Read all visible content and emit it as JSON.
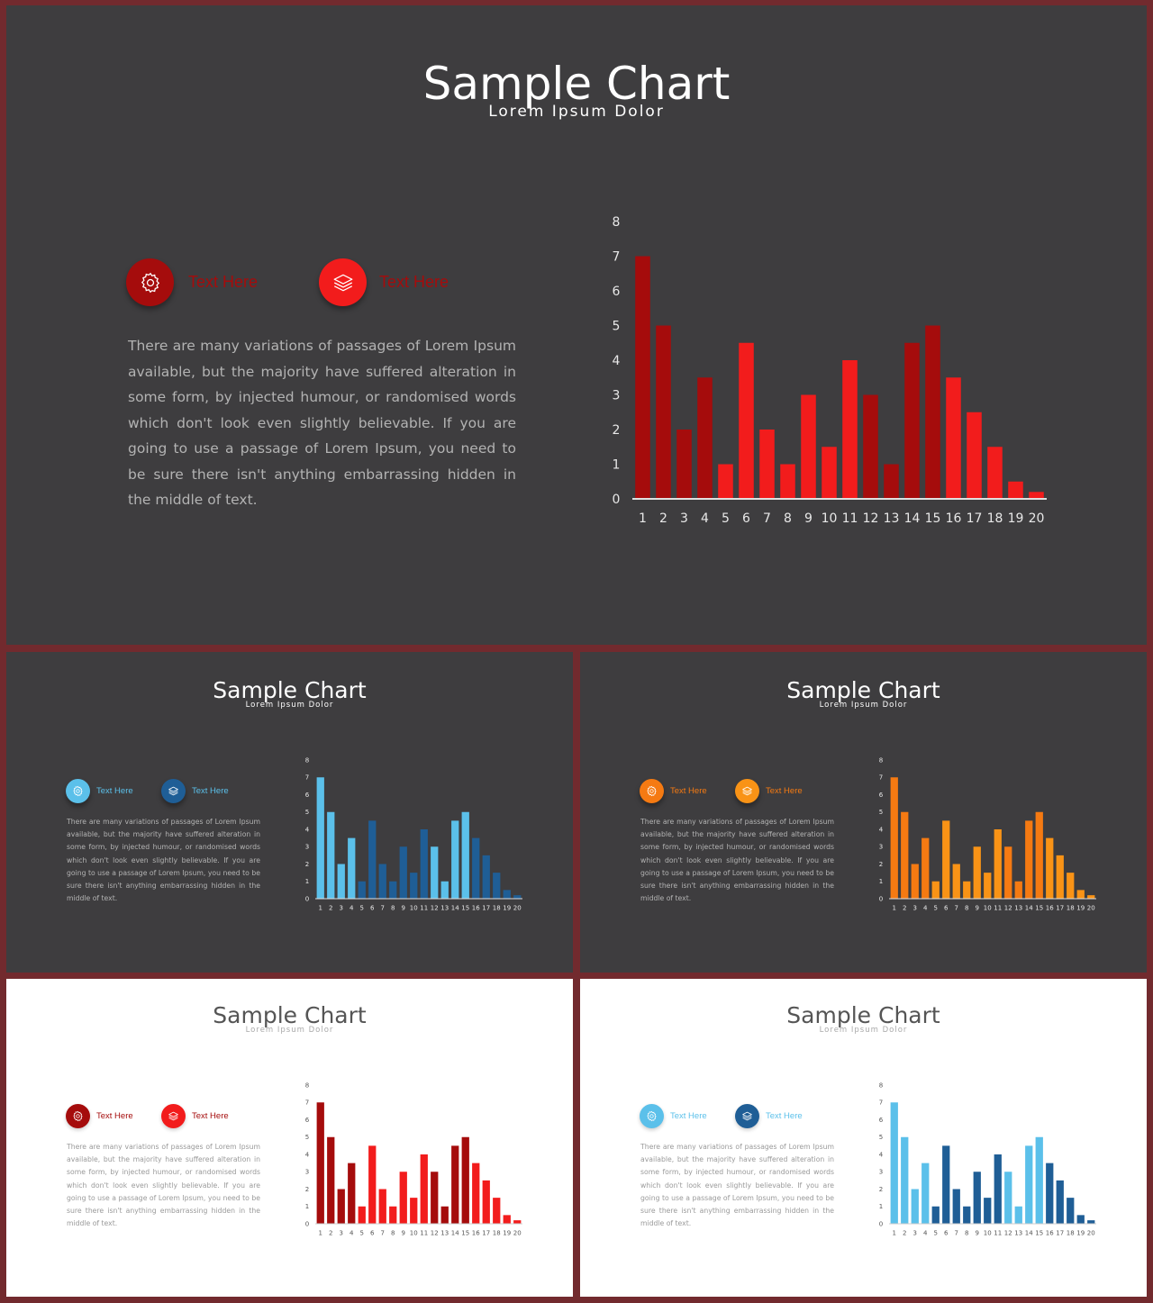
{
  "slides": [
    {
      "title": "Sample Chart",
      "subtitle": "Lorem Ipsum Dolor",
      "feature1": {
        "label": "Text Here",
        "icon": "gear-icon"
      },
      "feature2": {
        "label": "Text Here",
        "icon": "layers-icon"
      },
      "body": "There are many variations of passages of Lorem Ipsum available, but the majority have suffered alteration in some form, by injected humour, or randomised words which don't look even slightly believable. If you are going to use a passage of Lorem Ipsum, you need to be sure there isn't anything embarrassing hidden in the middle of text."
    },
    {
      "title": "Sample Chart",
      "subtitle": "Lorem Ipsum Dolor",
      "feature1": {
        "label": "Text Here",
        "icon": "gear-icon"
      },
      "feature2": {
        "label": "Text Here",
        "icon": "layers-icon"
      },
      "body": "There are many variations of passages of Lorem Ipsum available, but the majority have suffered alteration in some form, by injected humour, or randomised words which don't look even slightly believable. If you are going to use a passage of Lorem Ipsum, you need to be sure there isn't anything embarrassing hidden in the middle of text."
    },
    {
      "title": "Sample Chart",
      "subtitle": "Lorem Ipsum Dolor",
      "feature1": {
        "label": "Text Here",
        "icon": "gear-icon"
      },
      "feature2": {
        "label": "Text Here",
        "icon": "layers-icon"
      },
      "body": "There are many variations of passages of Lorem Ipsum available, but the majority have suffered alteration in some form, by injected humour, or randomised words which don't look even slightly believable. If you are going to use a passage of Lorem Ipsum, you need to be sure there isn't anything embarrassing hidden in the middle of text."
    },
    {
      "title": "Sample Chart",
      "subtitle": "Lorem Ipsum Dolor",
      "feature1": {
        "label": "Text Here",
        "icon": "gear-icon"
      },
      "feature2": {
        "label": "Text Here",
        "icon": "layers-icon"
      },
      "body": "There are many variations of passages of Lorem Ipsum available, but the majority have suffered alteration in some form, by injected humour, or randomised words which don't look even slightly believable. If you are going to use a passage of Lorem Ipsum, you need to be sure there isn't anything embarrassing hidden in the middle of text."
    },
    {
      "title": "Sample Chart",
      "subtitle": "Lorem Ipsum Dolor",
      "feature1": {
        "label": "Text Here",
        "icon": "gear-icon"
      },
      "feature2": {
        "label": "Text Here",
        "icon": "layers-icon"
      },
      "body": "There are many variations of passages of Lorem Ipsum available, but the majority have suffered alteration in some form, by injected humour, or randomised words which don't look even slightly believable. If you are going to use a passage of Lorem Ipsum, you need to be sure there isn't anything embarrassing hidden in the middle of text."
    }
  ],
  "themes": {
    "red": {
      "primary": "#a50c0c",
      "secondary": "#f21c1c",
      "label": "#a50c0c"
    },
    "blue": {
      "primary": "#5bc0ea",
      "secondary": "#1f5e96",
      "label": "#5bc0ea"
    },
    "orange": {
      "primary": "#f57a12",
      "secondary": "#f99316",
      "label": "#f57a12"
    },
    "red_light": {
      "primary": "#a50c0c",
      "secondary": "#f21c1c",
      "label": "#a50c0c"
    },
    "blue_light": {
      "primary": "#5bc0ea",
      "secondary": "#1f5e96",
      "label": "#5bc0ea"
    }
  },
  "chart_data": [
    {
      "type": "bar",
      "categories": [
        "1",
        "2",
        "3",
        "4",
        "5",
        "6",
        "7",
        "8",
        "9",
        "10",
        "11",
        "12",
        "13",
        "14",
        "15",
        "16",
        "17",
        "18",
        "19",
        "20"
      ],
      "values": [
        7,
        5,
        2,
        3.5,
        1,
        4.5,
        2,
        1,
        3,
        1.5,
        4,
        3,
        1,
        4.5,
        5,
        3.5,
        2.5,
        1.5,
        0.5,
        0.2
      ],
      "bar_colors": [
        "primary",
        "primary",
        "primary",
        "primary",
        "secondary",
        "secondary",
        "secondary",
        "secondary",
        "secondary",
        "secondary",
        "secondary",
        "primary",
        "primary",
        "primary",
        "primary",
        "secondary",
        "secondary",
        "secondary",
        "secondary",
        "secondary"
      ],
      "yticks": [
        0,
        1,
        2,
        3,
        4,
        5,
        6,
        7,
        8
      ],
      "ylim": [
        0,
        8
      ],
      "theme": "red"
    },
    {
      "type": "bar",
      "categories": [
        "1",
        "2",
        "3",
        "4",
        "5",
        "6",
        "7",
        "8",
        "9",
        "10",
        "11",
        "12",
        "13",
        "14",
        "15",
        "16",
        "17",
        "18",
        "19",
        "20"
      ],
      "values": [
        7,
        5,
        2,
        3.5,
        1,
        4.5,
        2,
        1,
        3,
        1.5,
        4,
        3,
        1,
        4.5,
        5,
        3.5,
        2.5,
        1.5,
        0.5,
        0.2
      ],
      "bar_colors": [
        "primary",
        "primary",
        "primary",
        "primary",
        "secondary",
        "secondary",
        "secondary",
        "secondary",
        "secondary",
        "secondary",
        "secondary",
        "primary",
        "primary",
        "primary",
        "primary",
        "secondary",
        "secondary",
        "secondary",
        "secondary",
        "secondary"
      ],
      "yticks": [
        0,
        1,
        2,
        3,
        4,
        5,
        6,
        7,
        8
      ],
      "ylim": [
        0,
        8
      ],
      "theme": "blue"
    },
    {
      "type": "bar",
      "categories": [
        "1",
        "2",
        "3",
        "4",
        "5",
        "6",
        "7",
        "8",
        "9",
        "10",
        "11",
        "12",
        "13",
        "14",
        "15",
        "16",
        "17",
        "18",
        "19",
        "20"
      ],
      "values": [
        7,
        5,
        2,
        3.5,
        1,
        4.5,
        2,
        1,
        3,
        1.5,
        4,
        3,
        1,
        4.5,
        5,
        3.5,
        2.5,
        1.5,
        0.5,
        0.2
      ],
      "bar_colors": [
        "primary",
        "primary",
        "primary",
        "primary",
        "secondary",
        "secondary",
        "secondary",
        "secondary",
        "secondary",
        "secondary",
        "secondary",
        "primary",
        "primary",
        "primary",
        "primary",
        "secondary",
        "secondary",
        "secondary",
        "secondary",
        "secondary"
      ],
      "yticks": [
        0,
        1,
        2,
        3,
        4,
        5,
        6,
        7,
        8
      ],
      "ylim": [
        0,
        8
      ],
      "theme": "orange"
    },
    {
      "type": "bar",
      "categories": [
        "1",
        "2",
        "3",
        "4",
        "5",
        "6",
        "7",
        "8",
        "9",
        "10",
        "11",
        "12",
        "13",
        "14",
        "15",
        "16",
        "17",
        "18",
        "19",
        "20"
      ],
      "values": [
        7,
        5,
        2,
        3.5,
        1,
        4.5,
        2,
        1,
        3,
        1.5,
        4,
        3,
        1,
        4.5,
        5,
        3.5,
        2.5,
        1.5,
        0.5,
        0.2
      ],
      "bar_colors": [
        "primary",
        "primary",
        "primary",
        "primary",
        "secondary",
        "secondary",
        "secondary",
        "secondary",
        "secondary",
        "secondary",
        "secondary",
        "primary",
        "primary",
        "primary",
        "primary",
        "secondary",
        "secondary",
        "secondary",
        "secondary",
        "secondary"
      ],
      "yticks": [
        0,
        1,
        2,
        3,
        4,
        5,
        6,
        7,
        8
      ],
      "ylim": [
        0,
        8
      ],
      "theme": "red_light"
    },
    {
      "type": "bar",
      "categories": [
        "1",
        "2",
        "3",
        "4",
        "5",
        "6",
        "7",
        "8",
        "9",
        "10",
        "11",
        "12",
        "13",
        "14",
        "15",
        "16",
        "17",
        "18",
        "19",
        "20"
      ],
      "values": [
        7,
        5,
        2,
        3.5,
        1,
        4.5,
        2,
        1,
        3,
        1.5,
        4,
        3,
        1,
        4.5,
        5,
        3.5,
        2.5,
        1.5,
        0.5,
        0.2
      ],
      "bar_colors": [
        "primary",
        "primary",
        "primary",
        "primary",
        "secondary",
        "secondary",
        "secondary",
        "secondary",
        "secondary",
        "secondary",
        "secondary",
        "primary",
        "primary",
        "primary",
        "primary",
        "secondary",
        "secondary",
        "secondary",
        "secondary",
        "secondary"
      ],
      "yticks": [
        0,
        1,
        2,
        3,
        4,
        5,
        6,
        7,
        8
      ],
      "ylim": [
        0,
        8
      ],
      "theme": "blue_light"
    }
  ]
}
